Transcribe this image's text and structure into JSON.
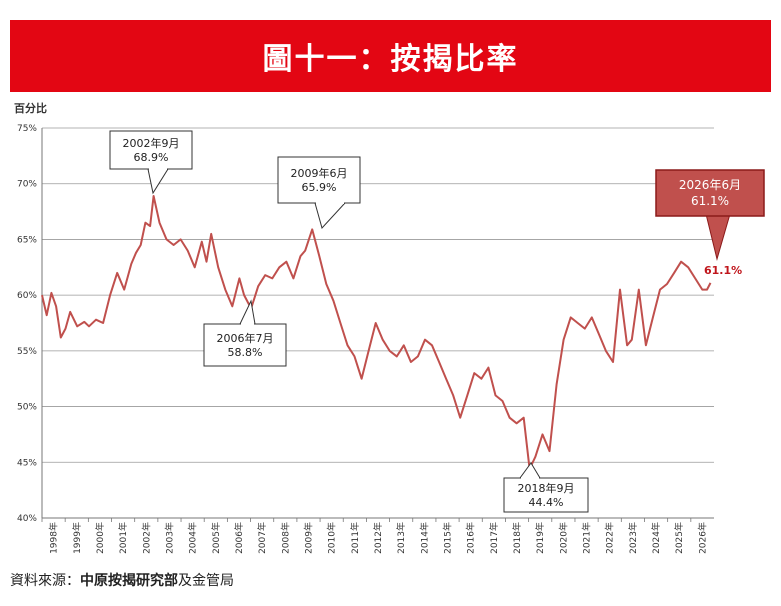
{
  "title": "圖十一：按揭比率",
  "source": {
    "prefix": "資料來源：",
    "bold": "中原按揭研究部",
    "suffix": "及金管局"
  },
  "chart_data": {
    "type": "line",
    "ylabel": "百分比",
    "ylim": [
      40,
      75
    ],
    "yticks": [
      "75%",
      "70%",
      "65%",
      "60%",
      "55%",
      "50%",
      "45%",
      "40%"
    ],
    "xticks": [
      "1998年",
      "1999年",
      "2000年",
      "2001年",
      "2002年",
      "2003年",
      "2004年",
      "2005年",
      "2006年",
      "2007年",
      "2008年",
      "2009年",
      "2010年",
      "2011年",
      "2012年",
      "2013年",
      "2014年",
      "2015年",
      "2016年",
      "2017年",
      "2018年",
      "2019年",
      "2020年",
      "2021年",
      "2022年",
      "2023年",
      "2024年",
      "2025年",
      "2026年"
    ],
    "grid": true,
    "series": [
      {
        "color": "#c0504d",
        "x": [
          1998.0,
          1998.2,
          1998.4,
          1998.6,
          1998.8,
          1999.0,
          1999.2,
          1999.5,
          1999.8,
          2000.0,
          2000.3,
          2000.6,
          2000.9,
          2001.2,
          2001.5,
          2001.8,
          2002.0,
          2002.2,
          2002.4,
          2002.6,
          2002.75,
          2003.0,
          2003.3,
          2003.6,
          2003.9,
          2004.2,
          2004.5,
          2004.8,
          2005.0,
          2005.2,
          2005.5,
          2005.8,
          2006.1,
          2006.4,
          2006.6,
          2006.9,
          2007.2,
          2007.5,
          2007.8,
          2008.1,
          2008.4,
          2008.7,
          2009.0,
          2009.2,
          2009.5,
          2009.8,
          2010.1,
          2010.4,
          2010.7,
          2011.0,
          2011.3,
          2011.6,
          2011.9,
          2012.2,
          2012.5,
          2012.8,
          2013.1,
          2013.4,
          2013.7,
          2014.0,
          2014.3,
          2014.6,
          2014.9,
          2015.2,
          2015.5,
          2015.8,
          2016.1,
          2016.4,
          2016.7,
          2017.0,
          2017.3,
          2017.6,
          2017.9,
          2018.2,
          2018.5,
          2018.75,
          2019.0,
          2019.3,
          2019.6,
          2019.9,
          2020.2,
          2020.5,
          2020.8,
          2021.1,
          2021.4,
          2021.7,
          2022.0,
          2022.3,
          2022.6,
          2022.9,
          2023.1,
          2023.4,
          2023.7,
          2024.0,
          2024.3,
          2024.6,
          2024.9,
          2025.2,
          2025.5,
          2025.8,
          2026.1,
          2026.3,
          2026.45
        ],
        "values": [
          60.0,
          58.2,
          60.2,
          59.0,
          56.2,
          57.0,
          58.5,
          57.2,
          57.6,
          57.2,
          57.8,
          57.5,
          60.0,
          62.0,
          60.5,
          62.8,
          63.8,
          64.5,
          66.5,
          66.2,
          68.9,
          66.5,
          65.0,
          64.5,
          65.0,
          64.0,
          62.5,
          64.8,
          63.0,
          65.5,
          62.5,
          60.5,
          59.0,
          61.5,
          60.0,
          58.8,
          60.8,
          61.8,
          61.5,
          62.5,
          63.0,
          61.5,
          63.5,
          64.0,
          65.9,
          63.5,
          61.0,
          59.5,
          57.5,
          55.5,
          54.5,
          52.5,
          55.0,
          57.5,
          56.0,
          55.0,
          54.5,
          55.5,
          54.0,
          54.5,
          56.0,
          55.5,
          54.0,
          52.5,
          51.0,
          49.0,
          51.0,
          53.0,
          52.5,
          53.5,
          51.0,
          50.5,
          49.0,
          48.5,
          49.0,
          44.4,
          45.5,
          47.5,
          46.0,
          52.0,
          56.0,
          58.0,
          57.5,
          57.0,
          58.0,
          56.5,
          55.0,
          54.0,
          60.5,
          55.5,
          56.0,
          60.5,
          55.5,
          58.0,
          60.5,
          61.0,
          62.0,
          63.0,
          62.5,
          61.5,
          60.5,
          60.5,
          61.1
        ]
      }
    ],
    "annotations": [
      {
        "label": "2002年9月",
        "value": "68.9%"
      },
      {
        "label": "2006年7月",
        "value": "58.8%"
      },
      {
        "label": "2009年6月",
        "value": "65.9%"
      },
      {
        "label": "2018年9月",
        "value": "44.4%"
      },
      {
        "label": "2026年6月",
        "value": "61.1%",
        "highlight": true
      }
    ],
    "end_label": "61.1%"
  }
}
